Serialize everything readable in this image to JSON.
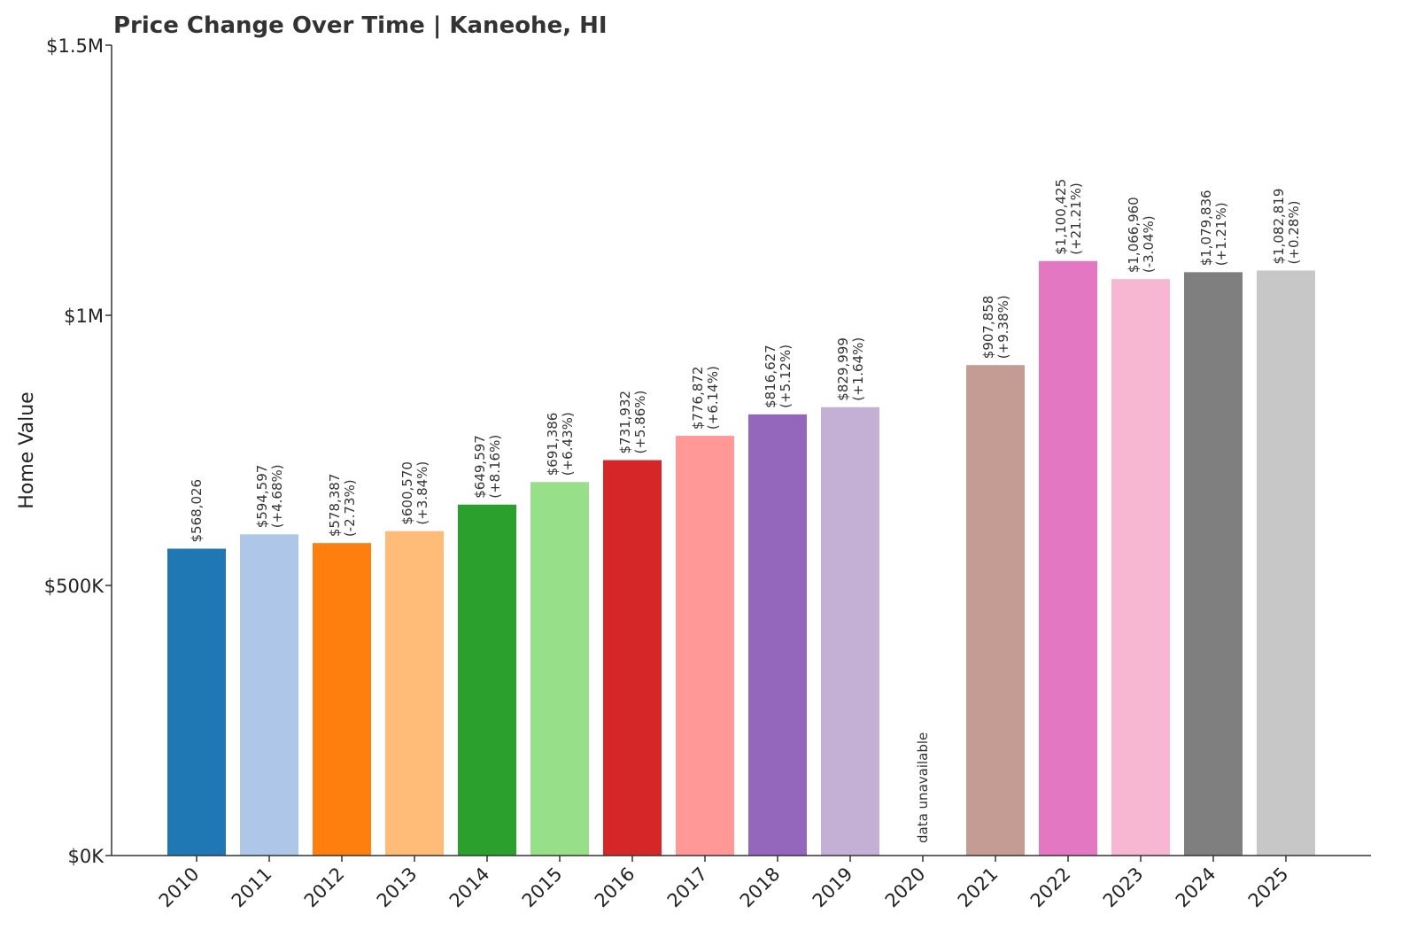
{
  "chart_data": {
    "type": "bar",
    "title": "Price Change Over Time | Kaneohe, HI",
    "xlabel": "",
    "ylabel": "Home Value",
    "ylim": [
      0,
      1500000
    ],
    "yticks": [
      {
        "value": 0,
        "label": "$0K"
      },
      {
        "value": 500000,
        "label": "$500K"
      },
      {
        "value": 1000000,
        "label": "$1M"
      },
      {
        "value": 1500000,
        "label": "$1.5M"
      }
    ],
    "grid": false,
    "legend": "none",
    "categories": [
      "2010",
      "2011",
      "2012",
      "2013",
      "2014",
      "2015",
      "2016",
      "2017",
      "2018",
      "2019",
      "2020",
      "2021",
      "2022",
      "2023",
      "2024",
      "2025"
    ],
    "values": [
      568026,
      594597,
      578387,
      600570,
      649597,
      691386,
      731932,
      776872,
      816627,
      829999,
      null,
      907858,
      1100425,
      1066960,
      1079836,
      1082819
    ],
    "value_labels": [
      "$568,026",
      "$594,597",
      "$578,387",
      "$600,570",
      "$649,597",
      "$691,386",
      "$731,932",
      "$776,872",
      "$816,627",
      "$829,999",
      "",
      "$907,858",
      "$1,100,425",
      "$1,066,960",
      "$1,079,836",
      "$1,082,819"
    ],
    "change_labels": [
      "",
      "(+4.68%)",
      "(-2.73%)",
      "(+3.84%)",
      "(+8.16%)",
      "(+6.43%)",
      "(+5.86%)",
      "(+6.14%)",
      "(+5.12%)",
      "(+1.64%)",
      "",
      "(+9.38%)",
      "(+21.21%)",
      "(-3.04%)",
      "(+1.21%)",
      "(+0.28%)"
    ],
    "missing_label": "data unavailable",
    "colors": [
      "#1f77b4",
      "#aec7e8",
      "#ff7f0e",
      "#ffbb78",
      "#2ca02c",
      "#98df8a",
      "#d62728",
      "#ff9896",
      "#9467bd",
      "#c5b0d5",
      "#8c564b",
      "#c49c94",
      "#e377c2",
      "#f7b6d2",
      "#7f7f7f",
      "#c7c7c7"
    ]
  }
}
